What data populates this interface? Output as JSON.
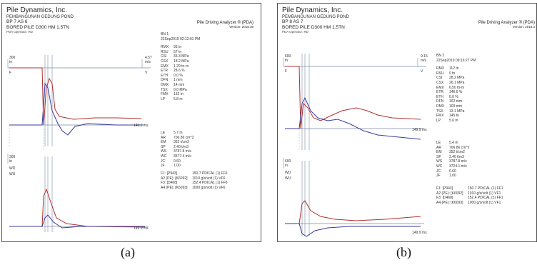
{
  "panels": [
    {
      "id": "a",
      "company": "Pile Dynamics, Inc.",
      "project": "PEMBANGUNAN GEDUNG POND",
      "pile": "BP 7 AS 6",
      "pile_desc": "BORED PILE D300 HM 1.5TN",
      "operator": "PDA Operator: RD",
      "product": "Pile Driving Analyzer ® (PDA)",
      "version": "Version: 2018.36",
      "top_left_value": "300",
      "top_left_unit": "in",
      "top_left_tag": "F",
      "top_right_value": "4.57",
      "top_right_unit": "m/s",
      "top_right_tag": "V",
      "bottom_left_value": "300",
      "bottom_left_unit": "in",
      "bottom_left_tag1": "WD",
      "bottom_left_tag2": "WU",
      "time_label_top": "149.9 ms",
      "time_label_bottom": "149.9 ms",
      "bn": "BN 1",
      "datetime": "22Sep2019 02:12:01 PM",
      "results": [
        {
          "k": "RMX",
          "v": "93 tn"
        },
        {
          "k": "RSU",
          "v": "57 tn"
        },
        {
          "k": "CSI",
          "v": "33.3 MPa"
        },
        {
          "k": "CSX",
          "v": "18.2 MPa"
        },
        {
          "k": "EMX",
          "v": "1.29 tn-m"
        },
        {
          "k": "ETR",
          "v": "28.6 %"
        },
        {
          "k": "ETH",
          "v": "0.0 %"
        },
        {
          "k": "DFN",
          "v": "1 mm"
        },
        {
          "k": "DMX",
          "v": "14 mm"
        },
        {
          "k": "TSX",
          "v": "0.0 MPa"
        },
        {
          "k": "FMX",
          "v": "132 tn"
        },
        {
          "k": "LP",
          "v": "5.8 m"
        }
      ],
      "params": [
        {
          "k": "LE",
          "v": "5.7 m"
        },
        {
          "k": "AR",
          "v": "706.86 cm^2"
        },
        {
          "k": "EM",
          "v": "352 t/cm2"
        },
        {
          "k": "SP",
          "v": "2.40 t/m3"
        },
        {
          "k": "WS",
          "v": "3787.8 m/s"
        },
        {
          "k": "WC",
          "v": "3577.4 m/s"
        },
        {
          "k": "JC",
          "v": "0.60"
        },
        {
          "k": "JF",
          "v": "1.00"
        }
      ],
      "sensors": [
        {
          "k": "F1: [P943]",
          "v": "150.7 PDICAL (1) FF6"
        },
        {
          "k": "A2 (PE): [K6092]",
          "v": "1010 g/s/volt (1) VF6"
        },
        {
          "k": "F3: [D468]",
          "v": "152.4 PDICAL (1) FF6"
        },
        {
          "k": "A4 (PE): [K6093]",
          "v": "1000 g/s/volt (1) VF6"
        }
      ]
    },
    {
      "id": "b",
      "company": "Pile Dynamics, Inc.",
      "project": "PEMBANGUNAN GEDUNG POND",
      "pile": "BP 8 AS 7",
      "pile_desc": "BORED PILE D300 HM 1.5TN",
      "operator": "PDA Operator: RD",
      "product": "Pile Driving Analyzer ® (PDA)",
      "version": "Version: 2018.3",
      "top_left_value": "600",
      "top_left_unit": "tn",
      "top_left_tag": "F",
      "top_right_value": "9.15",
      "top_right_unit": "m/s",
      "top_right_tag": "V",
      "bottom_left_value": "600",
      "bottom_left_unit": "in",
      "bottom_left_tag1": "WD",
      "bottom_left_tag2": "WU",
      "time_label_top": "149.9 ms",
      "time_label_bottom": "149.9 ms",
      "bn": "BN 2",
      "datetime": "22Sep2019 09:16:27 PM",
      "results": [
        {
          "k": "RMX",
          "v": "112 tn"
        },
        {
          "k": "RSU",
          "v": "0 tn"
        },
        {
          "k": "CSI",
          "v": "28.2 MPa"
        },
        {
          "k": "CSX",
          "v": "26.1 MPa"
        },
        {
          "k": "EMX",
          "v": "6.50 tn-m"
        },
        {
          "k": "ETR",
          "v": "146.6 %"
        },
        {
          "k": "ETH",
          "v": "0.0 %"
        },
        {
          "k": "DFN",
          "v": "102 mm"
        },
        {
          "k": "DMX",
          "v": "103 mm"
        },
        {
          "k": "TSX",
          "v": "13.1 MPa"
        },
        {
          "k": "FMX",
          "v": "145 tn"
        },
        {
          "k": "LP",
          "v": "5.6 m"
        }
      ],
      "params": [
        {
          "k": "LE",
          "v": "5.4 m"
        },
        {
          "k": "AR",
          "v": "706.86 cm^2"
        },
        {
          "k": "EM",
          "v": "352 t/cm2"
        },
        {
          "k": "SP",
          "v": "2.40 t/m3"
        },
        {
          "k": "WS",
          "v": "3787.8 m/s"
        },
        {
          "k": "WC",
          "v": "3724.1 m/s"
        },
        {
          "k": "JC",
          "v": "0.60"
        },
        {
          "k": "JF",
          "v": "1.00"
        }
      ],
      "sensors": [
        {
          "k": "F1: [P943]",
          "v": "150.7 PDICAL (1) FF1"
        },
        {
          "k": "A2 (PE): [K6092]",
          "v": "1010 g/s/volt (1) VF1"
        },
        {
          "k": "F3: [D468]",
          "v": "152.4 PDICAL (1) FF1"
        },
        {
          "k": "A4 (PE): [K6093]",
          "v": "1000 g/s/volt (1) VF1"
        }
      ]
    }
  ],
  "captions": [
    "(a)",
    "(b)"
  ],
  "colors": {
    "force": "#b03030",
    "velocity": "#3a3a9a",
    "axis": "#7a8aa8",
    "dashed": "#999999"
  }
}
